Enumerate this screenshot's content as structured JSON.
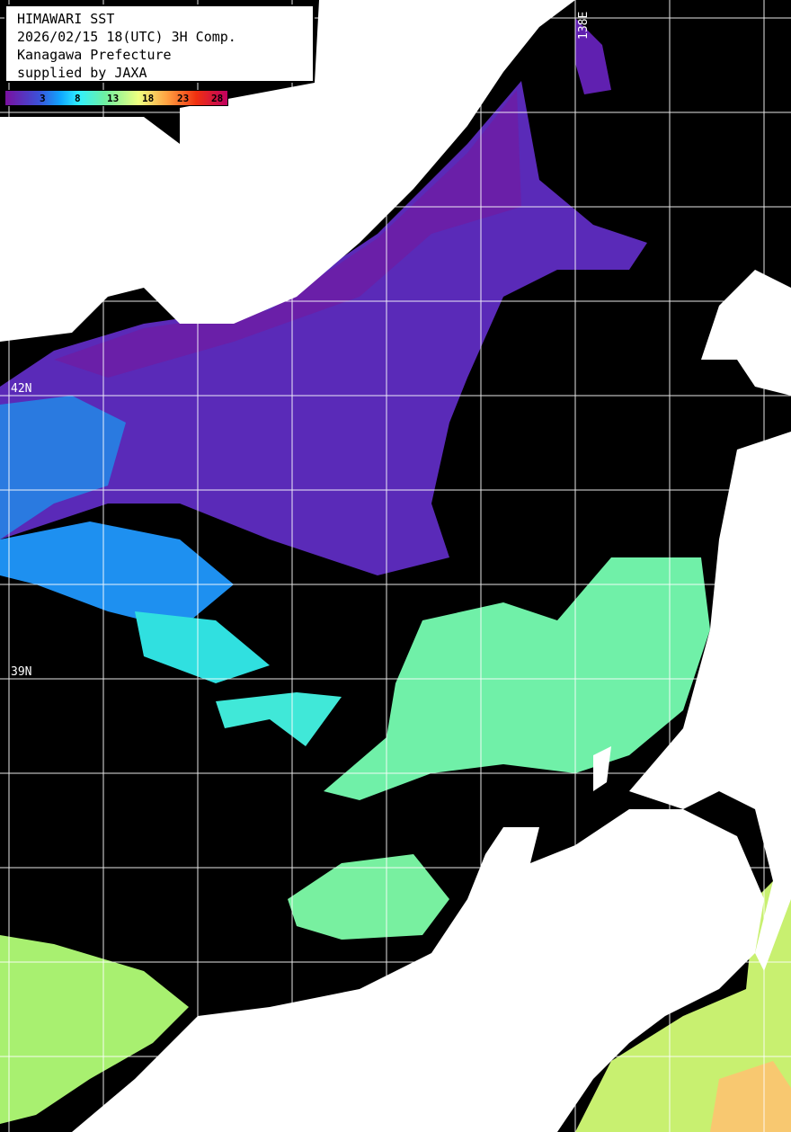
{
  "header": {
    "lines": [
      "HIMAWARI SST",
      "2026/02/15 18(UTC) 3H Comp.",
      "Kanagawa Prefecture",
      "supplied by JAXA"
    ]
  },
  "colorbar": {
    "ticks": [
      "3",
      "8",
      "13",
      "18",
      "23",
      "28"
    ],
    "colors": [
      "#7a10a0",
      "#3c50d8",
      "#10a8ff",
      "#30f0ff",
      "#70f0a0",
      "#f0ff80",
      "#ffa040",
      "#f03010",
      "#c00060"
    ]
  },
  "grid_labels": {
    "lat": [
      "42N",
      "39N"
    ],
    "lon": [
      "138E"
    ]
  },
  "colors": {
    "land": "#ffffff",
    "no_data": "#000000",
    "grid": "#ffffff"
  }
}
